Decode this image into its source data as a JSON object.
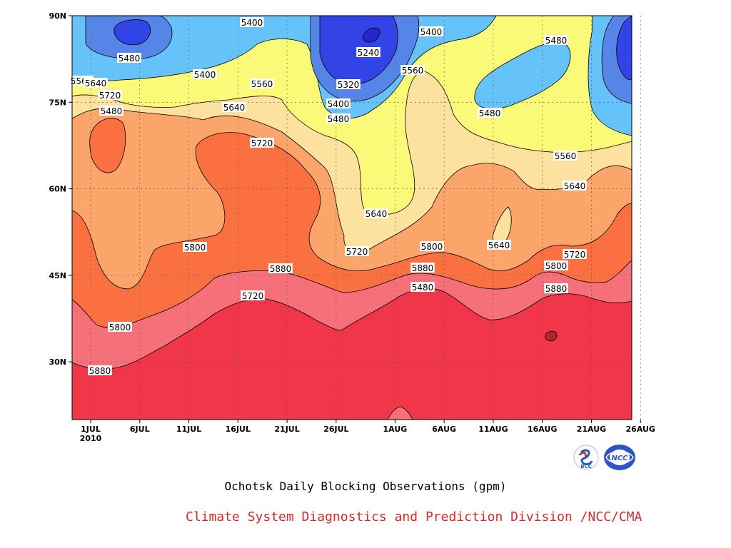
{
  "chart_data": {
    "type": "heatmap",
    "subtype": "filled-contour",
    "title": "Ochotsk Daily Blocking Observations (gpm)",
    "x_ticks": [
      {
        "label": "1JUL",
        "sub": "2010",
        "day": 1
      },
      {
        "label": "6JUL",
        "day": 6
      },
      {
        "label": "11JUL",
        "day": 11
      },
      {
        "label": "16JUL",
        "day": 16
      },
      {
        "label": "21JUL",
        "day": 21
      },
      {
        "label": "26JUL",
        "day": 26
      },
      {
        "label": "1AUG",
        "day": 32
      },
      {
        "label": "6AUG",
        "day": 37
      },
      {
        "label": "11AUG",
        "day": 42
      },
      {
        "label": "16AUG",
        "day": 47
      },
      {
        "label": "21AUG",
        "day": 52
      },
      {
        "label": "26AUG",
        "day": 57
      }
    ],
    "xlim": [
      1,
      58
    ],
    "y_ticks": [
      {
        "label": "30N",
        "lat": 30
      },
      {
        "label": "45N",
        "lat": 45
      },
      {
        "label": "60N",
        "lat": 60
      },
      {
        "label": "75N",
        "lat": 75
      },
      {
        "label": "90N",
        "lat": 90
      }
    ],
    "ylim": [
      20,
      90
    ],
    "levels": [
      5240,
      5320,
      5400,
      5480,
      5560,
      5640,
      5720,
      5800,
      5880
    ],
    "level_colors": [
      {
        "range": "<5320",
        "color": "#3344e6"
      },
      {
        "range": "5320-5400",
        "color": "#5585e6"
      },
      {
        "range": "5400-5480",
        "color": "#65c3fa"
      },
      {
        "range": "5480-5560",
        "color": "#fafa78"
      },
      {
        "range": "5560-5640",
        "color": "#fde19e"
      },
      {
        "range": "5640-5720",
        "color": "#fba56a"
      },
      {
        "range": "5720-5800",
        "color": "#fa7040"
      },
      {
        "range": "5800-5880",
        "color": "#f57078"
      },
      {
        "range": ">5880",
        "color": "#f2364a"
      },
      {
        "range": ">5960",
        "color": "#b2262e"
      }
    ],
    "contour_labels": [
      "5400",
      "5480",
      "5560",
      "5640",
      "5720",
      "5480",
      "5400",
      "5480",
      "5560",
      "5640",
      "5720",
      "5800",
      "5880",
      "5720",
      "5800",
      "5880",
      "5400",
      "5240",
      "5320",
      "5400",
      "5480",
      "5560",
      "5640",
      "5720",
      "5800",
      "5880",
      "5480",
      "5480",
      "5480",
      "5560",
      "5640",
      "5640",
      "5720",
      "5800",
      "5880"
    ]
  },
  "subtitle": "Ochotsk Daily Blocking Observations (gpm)",
  "credit": "Climate System Diagnostics and Prediction Division /NCC/CMA",
  "logos": [
    {
      "name": "bcc-logo",
      "text": "BCC"
    },
    {
      "name": "ncc-logo",
      "text": "NCC"
    }
  ]
}
